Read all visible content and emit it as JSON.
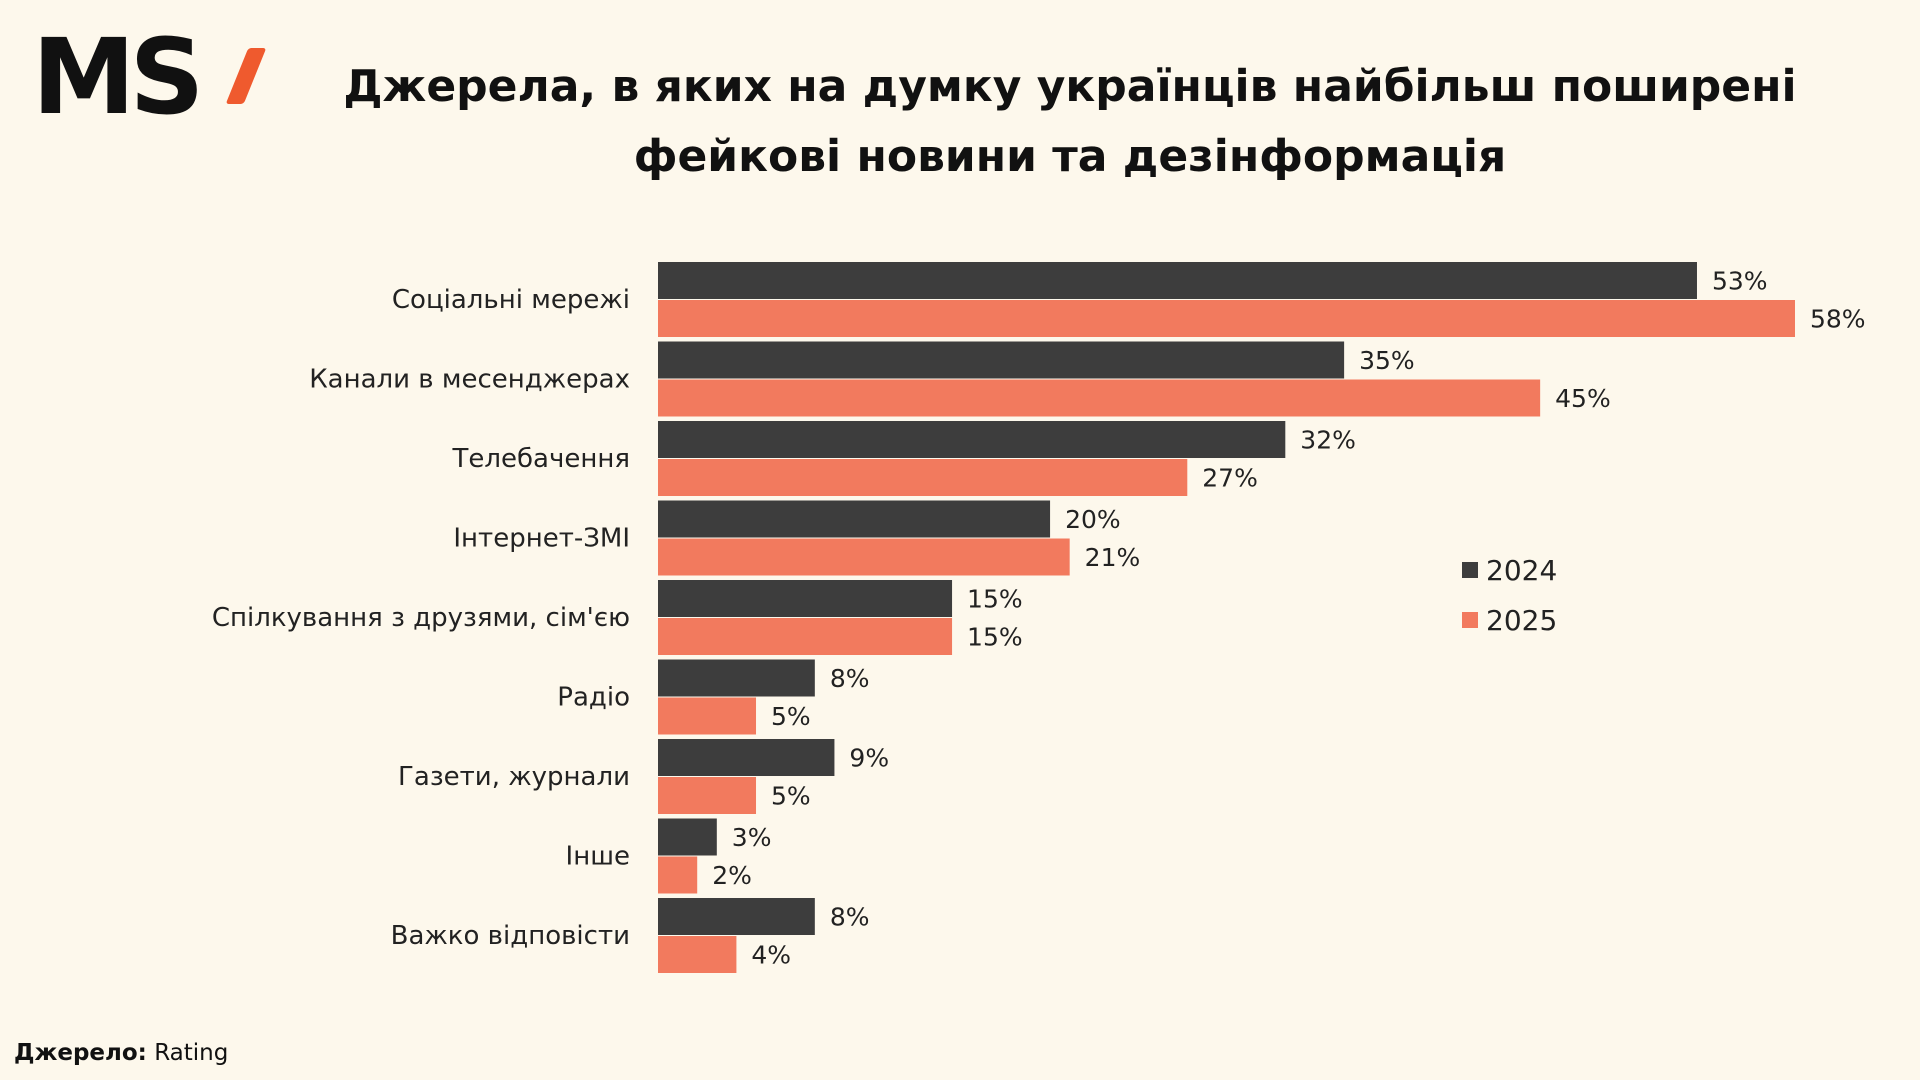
{
  "logo": {
    "text": "MS",
    "accent_color": "#ef5a2e"
  },
  "title": {
    "line1": "Джерела, в яких на думку українців найбільш поширені",
    "line2": "фейкові новини та дезінформація"
  },
  "source": {
    "label": "Джерело:",
    "value": "Rating"
  },
  "chart_data": {
    "type": "bar",
    "orientation": "horizontal",
    "title": "Джерела, в яких на думку українців найбільш поширені фейкові новини та дезінформація",
    "categories": [
      "Соціальні мережі",
      "Канали в месенджерах",
      "Телебачення",
      "Інтернет-ЗМІ",
      "Спілкування з друзями, сім'єю",
      "Радіо",
      "Газети, журнали",
      "Інше",
      "Важко відповісти"
    ],
    "series": [
      {
        "name": "2024",
        "color": "#3d3d3d",
        "values": [
          53,
          35,
          32,
          20,
          15,
          8,
          9,
          3,
          8
        ]
      },
      {
        "name": "2025",
        "color": "#f27a5e",
        "values": [
          58,
          45,
          27,
          21,
          15,
          5,
          5,
          2,
          4
        ]
      }
    ],
    "value_suffix": "%",
    "xlim": [
      0,
      100
    ],
    "grid": false,
    "legend": "right"
  }
}
